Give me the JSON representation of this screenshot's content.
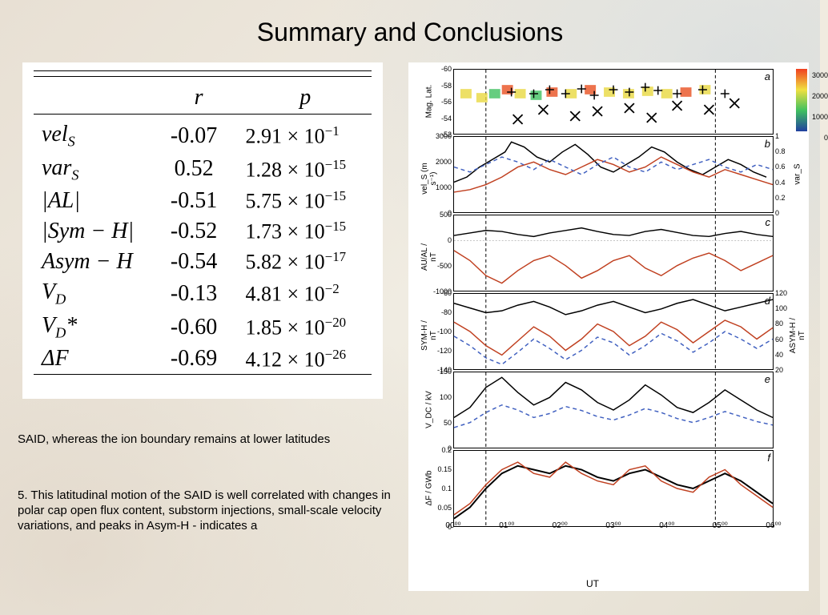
{
  "title": "Summary and Conclusions",
  "table": {
    "headers": [
      "r",
      "p"
    ],
    "rows": [
      {
        "var_html": "<i>vel<sub>S</sub></i>",
        "r": "-0.07",
        "p": "2.91 × 10<sup>−1</sup>"
      },
      {
        "var_html": "<i>var<sub>S</sub></i>",
        "r": "0.52",
        "p": "1.28 × 10<sup>−15</sup>"
      },
      {
        "var_html": "|<i>AL</i>|",
        "r": "-0.51",
        "p": "5.75 × 10<sup>−15</sup>"
      },
      {
        "var_html": "|<i>Sym − H</i>|",
        "r": "-0.52",
        "p": "1.73 × 10<sup>−15</sup>"
      },
      {
        "var_html": "<i>Asym − H</i>",
        "r": "-0.54",
        "p": "5.82 × 10<sup>−17</sup>"
      },
      {
        "var_html": "<i>V<sub>D</sub></i>",
        "r": "-0.13",
        "p": "4.81 × 10<sup>−2</sup>"
      },
      {
        "var_html": "<i>V<sub>D</sub></i>*",
        "r": "-0.60",
        "p": "1.85 × 10<sup>−20</sup>"
      },
      {
        "var_html": "Δ<i>F</i>",
        "r": "-0.69",
        "p": "4.12 × 10<sup>−26</sup>"
      }
    ],
    "font_family": "Times New Roman",
    "font_size_pt": 28
  },
  "text1": "SAID, whereas the ion boundary remains at lower latitudes",
  "text2": "5. This latitudinal motion of the SAID is well correlated with changes in polar cap open flux content, substorm injections, small-scale velocity variations, and peaks in Asym-H - indicates a",
  "charts": {
    "background_color": "#ffffff",
    "grid_color": "#e0e0e0",
    "xticks": [
      "00⁰⁰",
      "01⁰⁰",
      "02⁰⁰",
      "03⁰⁰",
      "04⁰⁰",
      "05⁰⁰",
      "06⁰⁰"
    ],
    "xtick_positions": [
      0,
      0.167,
      0.333,
      0.5,
      0.667,
      0.833,
      1.0
    ],
    "xlabel": "UT",
    "vertical_dashes": [
      0.1,
      0.82
    ],
    "panels": [
      {
        "id": "a",
        "height": 82,
        "ylabel": "Mag. Lat.",
        "ylim": [
          -52,
          -60
        ],
        "yticks": [
          -60,
          -58,
          -56,
          -54,
          -52
        ],
        "colorbar": {
          "min": 0,
          "max": 3000,
          "ticks": [
            0,
            1000,
            2000,
            3000
          ],
          "colors": [
            "#2040a0",
            "#40c060",
            "#f0e040",
            "#f04020"
          ]
        },
        "scatter_plus": {
          "marker": "+",
          "color": "#000000",
          "size": 11,
          "x": [
            0.18,
            0.25,
            0.3,
            0.35,
            0.4,
            0.44,
            0.5,
            0.55,
            0.6,
            0.64,
            0.7,
            0.78,
            0.85
          ],
          "y": [
            -57.2,
            -57.0,
            -57.5,
            -57.0,
            -57.6,
            -56.8,
            -57.5,
            -57.2,
            -57.8,
            -57.4,
            -57.0,
            -57.5,
            -57.0
          ]
        },
        "scatter_x": {
          "marker": "x",
          "color": "#000000",
          "size": 12,
          "x": [
            0.2,
            0.28,
            0.38,
            0.45,
            0.55,
            0.62,
            0.7,
            0.8,
            0.88
          ],
          "y": [
            -53.8,
            -55.0,
            -54.2,
            -54.8,
            -55.2,
            -54.0,
            -55.5,
            -55.0,
            -55.8
          ]
        },
        "heat_segments": {
          "x": [
            0.03,
            0.08,
            0.12,
            0.16,
            0.2,
            0.25,
            0.3,
            0.36,
            0.42,
            0.48,
            0.54,
            0.6,
            0.66,
            0.72,
            0.78
          ],
          "y": [
            -57,
            -56.5,
            -57,
            -57.5,
            -57,
            -56.8,
            -57.2,
            -57,
            -57.5,
            -57.2,
            -57,
            -57.3,
            -57,
            -57.2,
            -57.5
          ],
          "color_vals": [
            1800,
            2200,
            1500,
            2800,
            2000,
            1600,
            2400,
            1900,
            2600,
            2100,
            1700,
            2300,
            2000,
            2500,
            1800
          ]
        }
      },
      {
        "id": "b",
        "height": 96,
        "ylabel": "vel_S (m s⁻¹)",
        "ylabel_right": "var_S",
        "ylim": [
          0,
          3000
        ],
        "yticks": [
          0,
          1000,
          2000,
          3000
        ],
        "rylim": [
          0,
          1.0
        ],
        "ryticks": [
          0,
          0.2,
          0.4,
          0.6,
          0.8,
          1.0
        ],
        "series": [
          {
            "name": "vel_black",
            "color": "#000000",
            "width": 1.5,
            "x": [
              0,
              0.04,
              0.08,
              0.12,
              0.16,
              0.18,
              0.22,
              0.26,
              0.3,
              0.34,
              0.38,
              0.42,
              0.46,
              0.5,
              0.54,
              0.58,
              0.62,
              0.66,
              0.7,
              0.74,
              0.78,
              0.82,
              0.86,
              0.9,
              0.94,
              0.98
            ],
            "y": [
              1200,
              1400,
              1800,
              2100,
              2400,
              2800,
              2600,
              2200,
              2000,
              2400,
              2700,
              2300,
              1800,
              1600,
              1900,
              2200,
              2600,
              2400,
              2000,
              1700,
              1500,
              1800,
              2100,
              1900,
              1600,
              1400
            ]
          },
          {
            "name": "vel_red",
            "color": "#c04020",
            "width": 1.5,
            "x": [
              0,
              0.05,
              0.1,
              0.15,
              0.2,
              0.25,
              0.3,
              0.35,
              0.4,
              0.45,
              0.5,
              0.55,
              0.6,
              0.65,
              0.7,
              0.75,
              0.8,
              0.85,
              0.9,
              0.95,
              1.0
            ],
            "y": [
              800,
              900,
              1100,
              1400,
              1800,
              2000,
              1700,
              1500,
              1800,
              2100,
              1900,
              1600,
              1800,
              2200,
              1900,
              1600,
              1400,
              1700,
              1500,
              1300,
              1100
            ]
          },
          {
            "name": "var_blue",
            "color": "#4060c0",
            "width": 1.5,
            "dash": "5,4",
            "x": [
              0,
              0.05,
              0.1,
              0.15,
              0.2,
              0.25,
              0.3,
              0.35,
              0.4,
              0.45,
              0.5,
              0.55,
              0.6,
              0.65,
              0.7,
              0.75,
              0.8,
              0.85,
              0.9,
              0.95,
              1.0
            ],
            "y": [
              1800,
              1600,
              1900,
              2200,
              2000,
              1700,
              2100,
              1800,
              1500,
              1900,
              2200,
              1800,
              1600,
              2000,
              1700,
              1900,
              2100,
              1800,
              1600,
              1900,
              1700
            ]
          }
        ]
      },
      {
        "id": "c",
        "height": 96,
        "ylabel": "AU/AL / nT",
        "ylim": [
          -1000,
          500
        ],
        "yticks": [
          -1000,
          -500,
          0,
          500
        ],
        "hline": 0,
        "series": [
          {
            "name": "au_black",
            "color": "#000000",
            "width": 1.5,
            "x": [
              0,
              0.05,
              0.1,
              0.15,
              0.2,
              0.25,
              0.3,
              0.35,
              0.4,
              0.45,
              0.5,
              0.55,
              0.6,
              0.65,
              0.7,
              0.75,
              0.8,
              0.85,
              0.9,
              0.95,
              1.0
            ],
            "y": [
              100,
              150,
              200,
              180,
              120,
              80,
              150,
              200,
              250,
              180,
              120,
              100,
              180,
              220,
              160,
              100,
              80,
              140,
              180,
              120,
              80
            ]
          },
          {
            "name": "al_red",
            "color": "#c04020",
            "width": 1.5,
            "x": [
              0,
              0.05,
              0.1,
              0.15,
              0.2,
              0.25,
              0.3,
              0.35,
              0.4,
              0.45,
              0.5,
              0.55,
              0.6,
              0.65,
              0.7,
              0.75,
              0.8,
              0.85,
              0.9,
              0.95,
              1.0
            ],
            "y": [
              -200,
              -400,
              -700,
              -850,
              -600,
              -400,
              -300,
              -500,
              -750,
              -600,
              -400,
              -300,
              -550,
              -700,
              -500,
              -350,
              -250,
              -400,
              -600,
              -450,
              -300
            ]
          }
        ]
      },
      {
        "id": "d",
        "height": 96,
        "ylabel": "SYM-H / nT",
        "ylabel_right": "ASYM-H / nT",
        "ylim": [
          -140,
          -60
        ],
        "yticks": [
          -140,
          -120,
          -100,
          -80,
          -60
        ],
        "rylim": [
          20,
          120
        ],
        "ryticks": [
          20,
          40,
          60,
          80,
          100,
          120
        ],
        "series": [
          {
            "name": "sym_black",
            "color": "#000000",
            "width": 1.5,
            "x": [
              0,
              0.05,
              0.1,
              0.15,
              0.2,
              0.25,
              0.3,
              0.35,
              0.4,
              0.45,
              0.5,
              0.55,
              0.6,
              0.65,
              0.7,
              0.75,
              0.8,
              0.85,
              0.9,
              0.95,
              1.0
            ],
            "y": [
              -70,
              -75,
              -80,
              -78,
              -72,
              -68,
              -74,
              -82,
              -78,
              -72,
              -68,
              -74,
              -80,
              -76,
              -70,
              -66,
              -72,
              -78,
              -74,
              -70,
              -66
            ]
          },
          {
            "name": "sym_red",
            "color": "#c04020",
            "width": 1.5,
            "x": [
              0,
              0.05,
              0.1,
              0.15,
              0.2,
              0.25,
              0.3,
              0.35,
              0.4,
              0.45,
              0.5,
              0.55,
              0.6,
              0.65,
              0.7,
              0.75,
              0.8,
              0.85,
              0.9,
              0.95,
              1.0
            ],
            "y": [
              -90,
              -100,
              -115,
              -125,
              -110,
              -95,
              -105,
              -120,
              -108,
              -92,
              -100,
              -115,
              -105,
              -90,
              -98,
              -112,
              -100,
              -88,
              -95,
              -108,
              -96
            ]
          },
          {
            "name": "asym_blue",
            "color": "#4060c0",
            "width": 1.5,
            "dash": "5,4",
            "x": [
              0,
              0.05,
              0.1,
              0.15,
              0.2,
              0.25,
              0.3,
              0.35,
              0.4,
              0.45,
              0.5,
              0.55,
              0.6,
              0.65,
              0.7,
              0.75,
              0.8,
              0.85,
              0.9,
              0.95,
              1.0
            ],
            "y": [
              -105,
              -115,
              -128,
              -135,
              -122,
              -108,
              -118,
              -130,
              -120,
              -106,
              -112,
              -125,
              -115,
              -102,
              -110,
              -122,
              -112,
              -100,
              -108,
              -118,
              -108
            ]
          }
        ]
      },
      {
        "id": "e",
        "height": 96,
        "ylabel": "V_DC / kV",
        "ylim": [
          0,
          150
        ],
        "yticks": [
          0,
          50,
          100,
          150
        ],
        "series": [
          {
            "name": "vd_black",
            "color": "#000000",
            "width": 1.5,
            "x": [
              0,
              0.05,
              0.1,
              0.15,
              0.2,
              0.25,
              0.3,
              0.35,
              0.4,
              0.45,
              0.5,
              0.55,
              0.6,
              0.65,
              0.7,
              0.75,
              0.8,
              0.85,
              0.9,
              0.95,
              1.0
            ],
            "y": [
              60,
              80,
              120,
              140,
              110,
              85,
              100,
              130,
              115,
              90,
              75,
              95,
              125,
              105,
              80,
              70,
              90,
              115,
              95,
              75,
              60
            ]
          },
          {
            "name": "vd_blue",
            "color": "#4060c0",
            "width": 1.5,
            "dash": "5,4",
            "x": [
              0,
              0.05,
              0.1,
              0.15,
              0.2,
              0.25,
              0.3,
              0.35,
              0.4,
              0.45,
              0.5,
              0.55,
              0.6,
              0.65,
              0.7,
              0.75,
              0.8,
              0.85,
              0.9,
              0.95,
              1.0
            ],
            "y": [
              40,
              50,
              70,
              85,
              75,
              60,
              68,
              82,
              74,
              62,
              55,
              65,
              78,
              70,
              58,
              50,
              60,
              72,
              62,
              52,
              45
            ]
          }
        ]
      },
      {
        "id": "f",
        "height": 96,
        "ylabel": "ΔF / GWb",
        "ylim": [
          0,
          0.2
        ],
        "yticks": [
          0,
          0.05,
          0.1,
          0.15,
          0.2
        ],
        "series": [
          {
            "name": "df_black",
            "color": "#000000",
            "width": 2,
            "x": [
              0,
              0.05,
              0.1,
              0.15,
              0.2,
              0.25,
              0.3,
              0.35,
              0.4,
              0.45,
              0.5,
              0.55,
              0.6,
              0.65,
              0.7,
              0.75,
              0.8,
              0.85,
              0.9,
              0.95,
              1.0
            ],
            "y": [
              0.02,
              0.05,
              0.1,
              0.14,
              0.16,
              0.15,
              0.14,
              0.16,
              0.15,
              0.13,
              0.12,
              0.14,
              0.15,
              0.13,
              0.11,
              0.1,
              0.12,
              0.14,
              0.12,
              0.09,
              0.06
            ]
          },
          {
            "name": "df_red",
            "color": "#c04020",
            "width": 1.5,
            "x": [
              0,
              0.05,
              0.1,
              0.15,
              0.2,
              0.25,
              0.3,
              0.35,
              0.4,
              0.45,
              0.5,
              0.55,
              0.6,
              0.65,
              0.7,
              0.75,
              0.8,
              0.85,
              0.9,
              0.95,
              1.0
            ],
            "y": [
              0.03,
              0.06,
              0.11,
              0.15,
              0.17,
              0.14,
              0.13,
              0.17,
              0.14,
              0.12,
              0.11,
              0.15,
              0.16,
              0.12,
              0.1,
              0.09,
              0.13,
              0.15,
              0.11,
              0.08,
              0.05
            ]
          }
        ]
      }
    ]
  }
}
